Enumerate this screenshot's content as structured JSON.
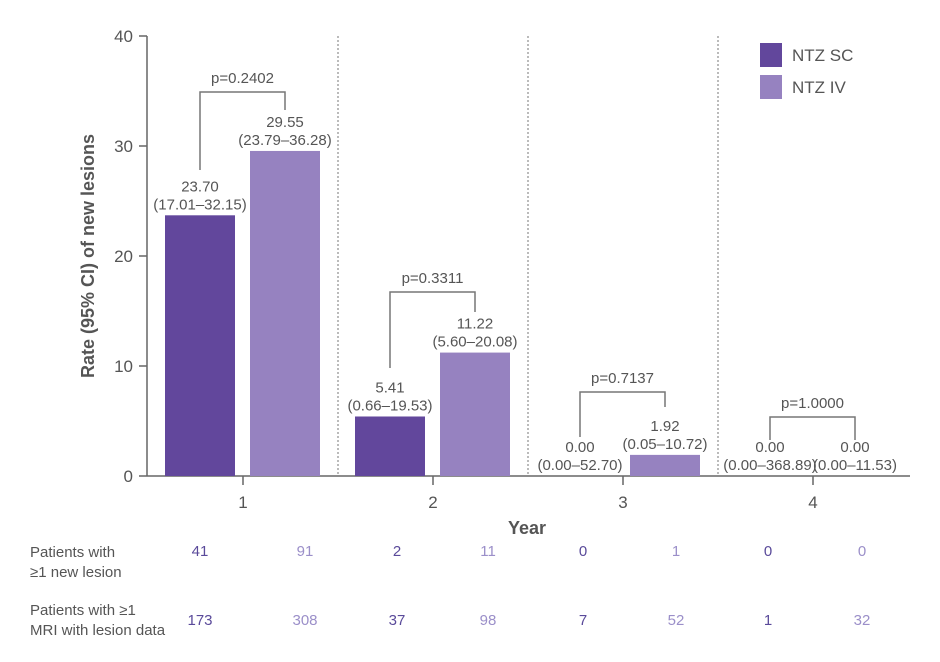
{
  "chart_data": {
    "type": "bar",
    "title": "",
    "xlabel": "Year",
    "ylabel": "Rate (95% CI) of new lesions",
    "ylim": [
      0,
      40
    ],
    "yticks": [
      0,
      10,
      20,
      30,
      40
    ],
    "categories": [
      "1",
      "2",
      "3",
      "4"
    ],
    "legend_position": "top-right",
    "series": [
      {
        "name": "NTZ SC",
        "color": "#62479c",
        "values": [
          23.7,
          5.41,
          0.0,
          0.0
        ],
        "value_labels": [
          "23.70",
          "5.41",
          "0.00",
          "0.00"
        ],
        "ci_labels": [
          "(17.01–32.15)",
          "(0.66–19.53)",
          "(0.00–52.70)",
          "(0.00–368.89)"
        ]
      },
      {
        "name": "NTZ IV",
        "color": "#9682c0",
        "values": [
          29.55,
          11.22,
          1.92,
          0.0
        ],
        "value_labels": [
          "29.55",
          "11.22",
          "1.92",
          "0.00"
        ],
        "ci_labels": [
          "(23.79–36.28)",
          "(5.60–20.08)",
          "(0.05–10.72)",
          "(0.00–11.53)"
        ]
      }
    ],
    "p_values": [
      "p=0.2402",
      "p=0.3311",
      "p=0.7137",
      "p=1.0000"
    ]
  },
  "table": {
    "rows": [
      {
        "label_lines": [
          "Patients with",
          "≥1 new lesion"
        ],
        "values": [
          "41",
          "91",
          "2",
          "11",
          "0",
          "1",
          "0",
          "0"
        ]
      },
      {
        "label_lines": [
          "Patients with ≥1",
          "MRI with lesion data"
        ],
        "values": [
          "173",
          "308",
          "37",
          "98",
          "7",
          "52",
          "1",
          "32"
        ]
      }
    ],
    "sc_text_color": "#5a4a9a",
    "iv_text_color": "#9b8fc9"
  }
}
